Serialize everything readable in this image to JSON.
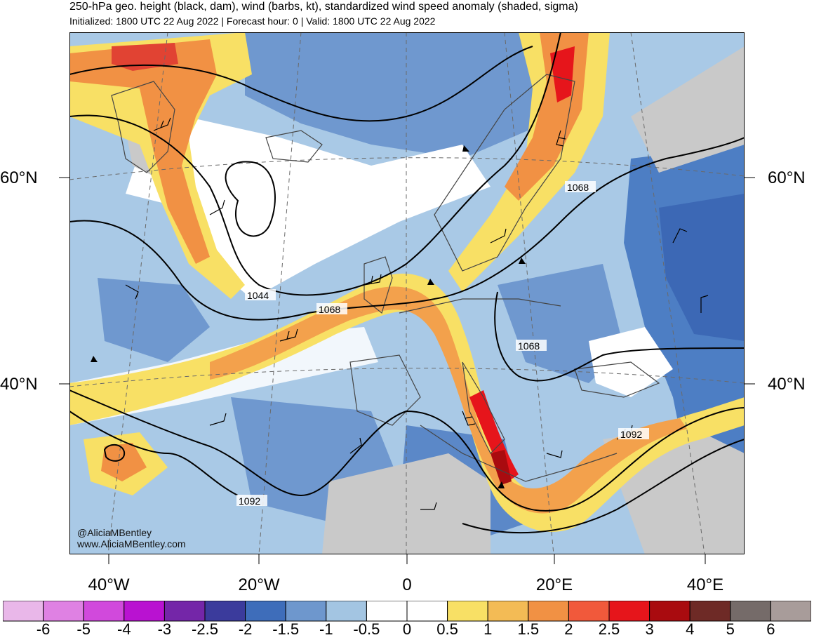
{
  "header": {
    "title": "250-hPa geo. height (black, dam), wind (barbs, kt), standardized wind speed anomaly (shaded, sigma)",
    "subtitle": "Initialized: 1800 UTC 22 Aug 2022 | Forecast hour: 0 | Valid: 1800 UTC 22 Aug 2022"
  },
  "axes": {
    "lat_left": [
      "60°N",
      "40°N"
    ],
    "lat_right": [
      "60°N",
      "40°N"
    ],
    "lon_bottom": [
      "40°W",
      "20°W",
      "0",
      "20°E",
      "40°E"
    ]
  },
  "contour_labels": [
    "1044",
    "1068",
    "1068",
    "1068",
    "1092",
    "1092"
  ],
  "credit": {
    "handle": "@AliciaMBentley",
    "website": "www.AliciaMBentley.com"
  },
  "colorbar": {
    "labels": [
      "-6",
      "-5",
      "-4",
      "-3",
      "-2.5",
      "-2",
      "-1.5",
      "-1",
      "-0.5",
      "0",
      "0.5",
      "1",
      "1.5",
      "2",
      "2.5",
      "3",
      "4",
      "5",
      "6"
    ],
    "colors": [
      "#e9b7e9",
      "#df81e3",
      "#d149dc",
      "#b912d1",
      "#7426a8",
      "#3b3b9c",
      "#3e6dba",
      "#6e97cd",
      "#a3c5e2",
      "#ffffff",
      "#ffffff",
      "#f8e065",
      "#f3bb55",
      "#f19144",
      "#f1593b",
      "#e6151b",
      "#a90b0f",
      "#6e2a26",
      "#756b69",
      "#a89c9a"
    ]
  },
  "legend_colors": {
    "land_gray": "#c9c9c9",
    "contour": "#000000"
  }
}
